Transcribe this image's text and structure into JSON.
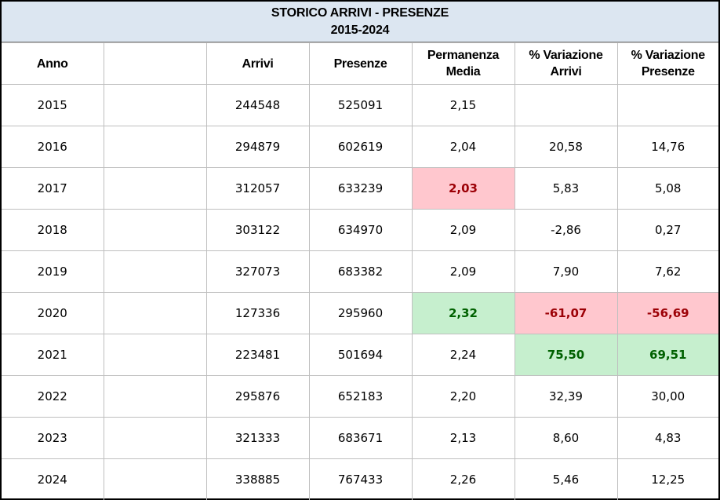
{
  "title": {
    "line1": "STORICO ARRIVI - PRESENZE",
    "line2": "2015-2024"
  },
  "headers": {
    "anno": "Anno",
    "blank": "",
    "arrivi": "Arrivi",
    "presenze": "Presenze",
    "permanenza_line1": "Permanenza",
    "permanenza_line2": "Media",
    "var_arrivi_line1": "% Variazione",
    "var_arrivi_line2": "Arrivi",
    "var_presenze_line1": "% Variazione",
    "var_presenze_line2": "Presenze"
  },
  "highlight_colors": {
    "negative_fill": "#ffc7ce",
    "negative_text": "#9c0006",
    "positive_fill": "#c6efce",
    "positive_text": "#006100",
    "title_fill": "#dce6f1"
  },
  "rows": [
    {
      "anno": "2015",
      "arrivi": "244548",
      "presenze": "525091",
      "permanenza": "2,15",
      "var_arrivi": "",
      "var_presenze": ""
    },
    {
      "anno": "2016",
      "arrivi": "294879",
      "presenze": "602619",
      "permanenza": "2,04",
      "var_arrivi": "20,58",
      "var_presenze": "14,76"
    },
    {
      "anno": "2017",
      "arrivi": "312057",
      "presenze": "633239",
      "permanenza": "2,03",
      "var_arrivi": "5,83",
      "var_presenze": "5,08",
      "hl_permanenza": "neg"
    },
    {
      "anno": "2018",
      "arrivi": "303122",
      "presenze": "634970",
      "permanenza": "2,09",
      "var_arrivi": "-2,86",
      "var_presenze": "0,27"
    },
    {
      "anno": "2019",
      "arrivi": "327073",
      "presenze": "683382",
      "permanenza": "2,09",
      "var_arrivi": "7,90",
      "var_presenze": "7,62"
    },
    {
      "anno": "2020",
      "arrivi": "127336",
      "presenze": "295960",
      "permanenza": "2,32",
      "var_arrivi": "-61,07",
      "var_presenze": "-56,69",
      "hl_permanenza": "pos",
      "hl_var_arrivi": "neg",
      "hl_var_presenze": "neg"
    },
    {
      "anno": "2021",
      "arrivi": "223481",
      "presenze": "501694",
      "permanenza": "2,24",
      "var_arrivi": "75,50",
      "var_presenze": "69,51",
      "hl_var_arrivi": "pos",
      "hl_var_presenze": "pos"
    },
    {
      "anno": "2022",
      "arrivi": "295876",
      "presenze": "652183",
      "permanenza": "2,20",
      "var_arrivi": "32,39",
      "var_presenze": "30,00"
    },
    {
      "anno": "2023",
      "arrivi": "321333",
      "presenze": "683671",
      "permanenza": "2,13",
      "var_arrivi": "8,60",
      "var_presenze": "4,83"
    },
    {
      "anno": "2024",
      "arrivi": "338885",
      "presenze": "767433",
      "permanenza": "2,26",
      "var_arrivi": "5,46",
      "var_presenze": "12,25"
    }
  ]
}
